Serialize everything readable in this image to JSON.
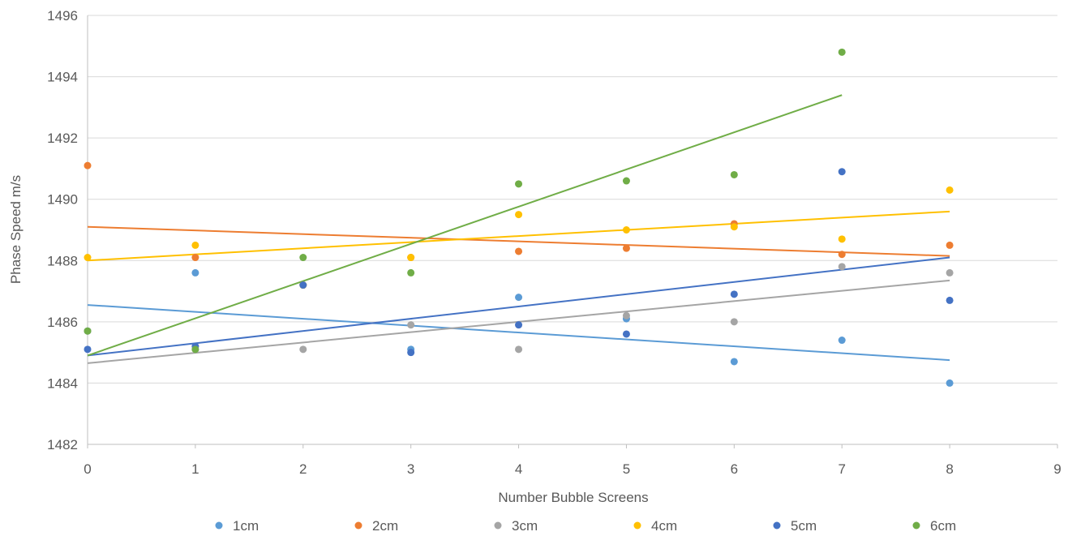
{
  "chart_data": {
    "type": "scatter",
    "title": "",
    "xlabel": "Number Bubble Screens",
    "ylabel": "Phase Speed m/s",
    "xlim": [
      0,
      9
    ],
    "ylim": [
      1482,
      1496
    ],
    "x_ticks": [
      0,
      1,
      2,
      3,
      4,
      5,
      6,
      7,
      8,
      9
    ],
    "y_ticks": [
      1482,
      1484,
      1486,
      1488,
      1490,
      1492,
      1494,
      1496
    ],
    "grid": "horizontal",
    "legend_position": "bottom",
    "series": [
      {
        "name": "1cm",
        "color": "#5B9BD5",
        "points": [
          [
            0,
            1485.7
          ],
          [
            1,
            1487.6
          ],
          [
            2,
            1487.2
          ],
          [
            3,
            1485.1
          ],
          [
            4,
            1486.8
          ],
          [
            5,
            1486.1
          ],
          [
            6,
            1484.7
          ],
          [
            7,
            1485.4
          ],
          [
            8,
            1484.0
          ]
        ],
        "trendline": {
          "x": [
            0,
            8
          ],
          "y": [
            1486.55,
            1484.75
          ]
        }
      },
      {
        "name": "2cm",
        "color": "#ED7D31",
        "points": [
          [
            0,
            1491.1
          ],
          [
            1,
            1488.1
          ],
          [
            2,
            1487.2
          ],
          [
            3,
            1488.1
          ],
          [
            4,
            1488.3
          ],
          [
            5,
            1488.4
          ],
          [
            6,
            1489.2
          ],
          [
            7,
            1488.2
          ],
          [
            8,
            1488.5
          ]
        ],
        "trendline": {
          "x": [
            0,
            8
          ],
          "y": [
            1489.1,
            1488.15
          ]
        }
      },
      {
        "name": "3cm",
        "color": "#A5A5A5",
        "points": [
          [
            0,
            1485.7
          ],
          [
            1,
            1485.1
          ],
          [
            2,
            1485.1
          ],
          [
            3,
            1485.9
          ],
          [
            4,
            1485.1
          ],
          [
            5,
            1486.2
          ],
          [
            6,
            1486.0
          ],
          [
            7,
            1487.8
          ],
          [
            8,
            1487.6
          ]
        ],
        "trendline": {
          "x": [
            0,
            8
          ],
          "y": [
            1484.65,
            1487.35
          ]
        }
      },
      {
        "name": "4cm",
        "color": "#FFC000",
        "points": [
          [
            0,
            1488.1
          ],
          [
            1,
            1488.5
          ],
          [
            2,
            1487.2
          ],
          [
            3,
            1488.1
          ],
          [
            4,
            1489.5
          ],
          [
            5,
            1489.0
          ],
          [
            6,
            1489.1
          ],
          [
            7,
            1488.7
          ],
          [
            8,
            1490.3
          ]
        ],
        "trendline": {
          "x": [
            0,
            8
          ],
          "y": [
            1488.0,
            1489.6
          ]
        }
      },
      {
        "name": "5cm",
        "color": "#4472C4",
        "points": [
          [
            0,
            1485.1
          ],
          [
            1,
            1485.2
          ],
          [
            2,
            1487.2
          ],
          [
            3,
            1485.0
          ],
          [
            4,
            1485.9
          ],
          [
            5,
            1485.6
          ],
          [
            6,
            1486.9
          ],
          [
            7,
            1490.9
          ],
          [
            8,
            1486.7
          ]
        ],
        "trendline": {
          "x": [
            0,
            8
          ],
          "y": [
            1484.9,
            1488.1
          ]
        }
      },
      {
        "name": "6cm",
        "color": "#70AD47",
        "points": [
          [
            0,
            1485.7
          ],
          [
            1,
            1485.1
          ],
          [
            2,
            1488.1
          ],
          [
            3,
            1487.6
          ],
          [
            4,
            1490.5
          ],
          [
            5,
            1490.6
          ],
          [
            6,
            1490.8
          ],
          [
            7,
            1494.8
          ]
        ],
        "trendline": {
          "x": [
            0,
            7
          ],
          "y": [
            1484.9,
            1493.4
          ]
        }
      }
    ]
  }
}
